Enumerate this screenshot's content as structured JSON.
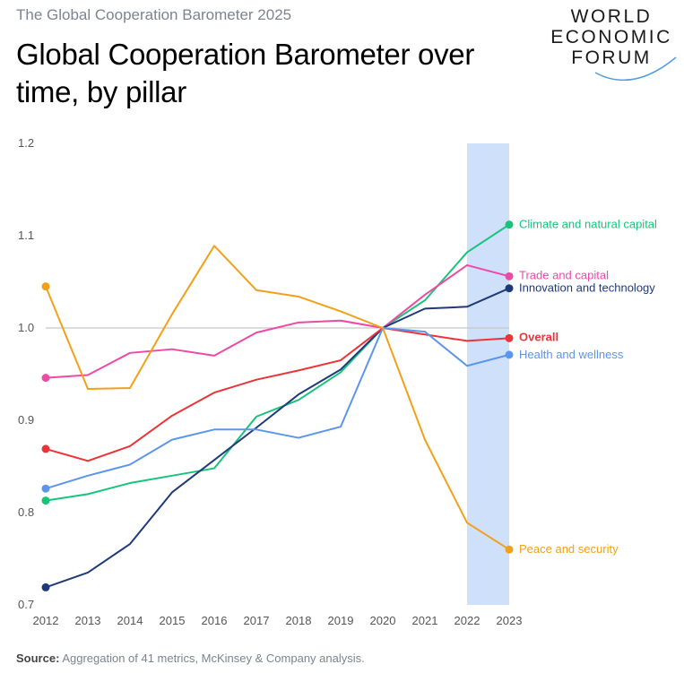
{
  "header": {
    "supertitle": "The Global Cooperation Barometer 2025",
    "title": "Global Cooperation Barometer over time, by pillar"
  },
  "logo": {
    "line1": "WORLD",
    "line2": "ECONOMIC",
    "line3": "FORUM"
  },
  "footer": {
    "source_label": "Source:",
    "source_text": "Aggregation of 41 metrics, McKinsey & Company analysis."
  },
  "chart_data": {
    "type": "line",
    "x": [
      "2012",
      "2013",
      "2014",
      "2015",
      "2016",
      "2017",
      "2018",
      "2019",
      "2020",
      "2021",
      "2022",
      "2023"
    ],
    "ylim": [
      0.7,
      1.2
    ],
    "yticks": [
      "0.7",
      "0.8",
      "0.9",
      "1.0",
      "1.1",
      "1.2"
    ],
    "reference_line": 1.0,
    "highlight_band": [
      "2022",
      "2023"
    ],
    "grid": false,
    "series": [
      {
        "name": "Climate and natural capital",
        "color": "#17c47a",
        "values": [
          0.813,
          0.82,
          0.832,
          0.84,
          0.848,
          0.904,
          0.922,
          0.952,
          1.0,
          1.03,
          1.082,
          1.112
        ]
      },
      {
        "name": "Trade and capital",
        "color": "#ec4aa6",
        "values": [
          0.946,
          0.949,
          0.973,
          0.977,
          0.97,
          0.995,
          1.006,
          1.008,
          1.0,
          1.036,
          1.068,
          1.056
        ]
      },
      {
        "name": "Innovation and technology",
        "color": "#1f3a7a",
        "values": [
          0.719,
          0.735,
          0.766,
          0.822,
          0.857,
          0.892,
          0.928,
          0.955,
          1.0,
          1.021,
          1.023,
          1.043
        ]
      },
      {
        "name": "Overall",
        "color": "#ec3438",
        "values": [
          0.869,
          0.856,
          0.872,
          0.905,
          0.93,
          0.944,
          0.954,
          0.965,
          1.0,
          0.993,
          0.986,
          0.989
        ]
      },
      {
        "name": "Health and wellness",
        "color": "#5b95ec",
        "values": [
          0.826,
          0.84,
          0.852,
          0.879,
          0.89,
          0.89,
          0.881,
          0.893,
          1.0,
          0.996,
          0.959,
          0.971
        ]
      },
      {
        "name": "Peace and security",
        "color": "#f3a019",
        "values": [
          1.045,
          0.934,
          0.935,
          1.015,
          1.089,
          1.041,
          1.034,
          1.018,
          1.0,
          0.879,
          0.789,
          0.76
        ]
      }
    ]
  }
}
